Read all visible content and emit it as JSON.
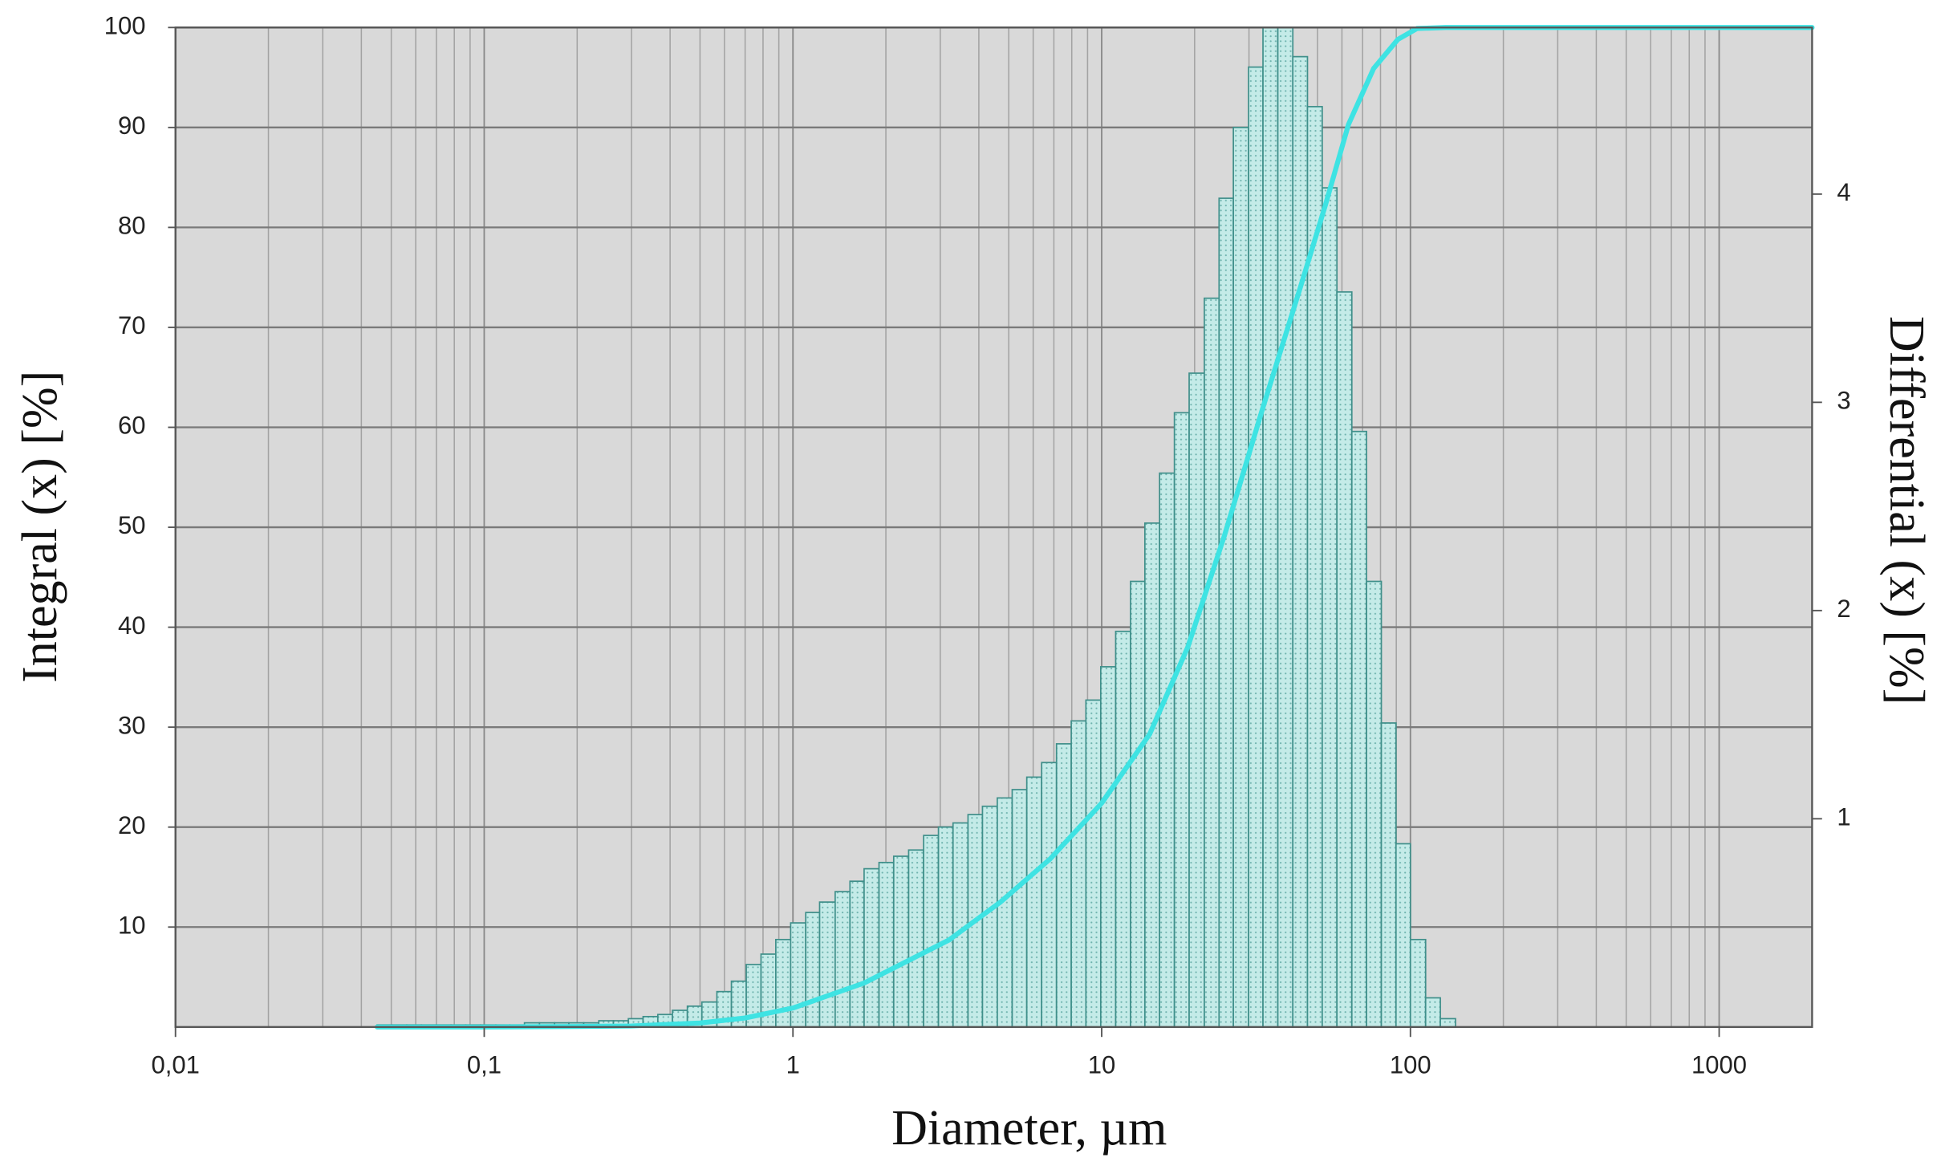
{
  "chart_data": {
    "type": "histogram",
    "xlabel": "Diameter, µm",
    "ylabel": "Integral (x) [%]",
    "y2label": "Differential (x) [%]",
    "xscale": "log",
    "xlim": [
      0.01,
      2000
    ],
    "xticks": [
      {
        "value": 0.01,
        "label": "0,01"
      },
      {
        "value": 0.1,
        "label": "0,1"
      },
      1,
      10,
      100,
      1000
    ],
    "x_minor_grid": [
      0.02,
      0.03,
      0.04,
      0.05,
      0.06,
      0.07,
      0.08,
      0.09,
      0.2,
      0.3,
      0.4,
      0.5,
      0.6,
      0.7,
      0.8,
      0.9,
      2,
      3,
      4,
      5,
      6,
      7,
      8,
      9,
      20,
      30,
      40,
      50,
      60,
      70,
      80,
      90,
      200,
      300,
      400,
      500,
      600,
      700,
      800,
      900
    ],
    "ylim": [
      0,
      100
    ],
    "yticks": [
      10,
      20,
      30,
      40,
      50,
      60,
      70,
      80,
      90,
      100
    ],
    "y2lim": [
      0,
      4.8
    ],
    "y2ticks": [
      1,
      2,
      3,
      4
    ],
    "grid": true,
    "background": "#d9d9d9",
    "series": [
      {
        "type": "histogram",
        "axis": "y2",
        "color": "#c4ebe8",
        "edge_color": "#3f8f8a",
        "bins": [
          0.045,
          0.0502,
          0.0561,
          0.0626,
          0.0699,
          0.0781,
          0.0871,
          0.0973,
          0.109,
          0.121,
          0.135,
          0.151,
          0.169,
          0.188,
          0.21,
          0.235,
          0.262,
          0.293,
          0.327,
          0.365,
          0.407,
          0.455,
          0.507,
          0.567,
          0.632,
          0.706,
          0.788,
          0.88,
          0.983,
          1.1,
          1.22,
          1.37,
          1.53,
          1.7,
          1.9,
          2.12,
          2.37,
          2.65,
          2.96,
          3.3,
          3.69,
          4.11,
          4.59,
          5.13,
          5.72,
          6.39,
          7.14,
          7.97,
          8.89,
          9.93,
          11.1,
          12.4,
          13.8,
          15.4,
          17.2,
          19.2,
          21.5,
          24,
          26.7,
          29.9,
          33.3,
          37.2,
          41.6,
          46.4,
          51.8,
          57.8,
          64.6,
          72.1,
          80.5,
          89.8,
          100,
          112,
          125,
          140
        ],
        "values": [
          0.01,
          0.01,
          0.01,
          0.01,
          0.01,
          0.01,
          0.01,
          0.01,
          0.01,
          0.01,
          0.02,
          0.02,
          0.02,
          0.02,
          0.02,
          0.03,
          0.03,
          0.04,
          0.05,
          0.06,
          0.08,
          0.1,
          0.12,
          0.17,
          0.22,
          0.3,
          0.35,
          0.42,
          0.5,
          0.55,
          0.6,
          0.65,
          0.7,
          0.76,
          0.79,
          0.82,
          0.85,
          0.92,
          0.96,
          0.98,
          1.02,
          1.06,
          1.1,
          1.14,
          1.2,
          1.27,
          1.36,
          1.47,
          1.57,
          1.73,
          1.9,
          2.14,
          2.42,
          2.66,
          2.95,
          3.14,
          3.5,
          3.98,
          4.32,
          4.61,
          4.8,
          4.8,
          4.66,
          4.42,
          4.03,
          3.53,
          2.86,
          2.14,
          1.46,
          0.88,
          0.42,
          0.14,
          0.04
        ]
      },
      {
        "type": "line",
        "axis": "y",
        "color": "#3ee3e3",
        "x": [
          0.045,
          0.1,
          0.2,
          0.3,
          0.5,
          0.7,
          1,
          1.7,
          3.2,
          4.7,
          6.8,
          10,
          14.3,
          19,
          25,
          33,
          44,
          53,
          63,
          76,
          91,
          105,
          130,
          2000
        ],
        "values": [
          0,
          0,
          0.05,
          0.1,
          0.4,
          0.9,
          1.9,
          4.4,
          8.7,
          12.5,
          16.8,
          22.4,
          29.3,
          38,
          49.2,
          61.6,
          74,
          82.2,
          90.3,
          95.9,
          98.8,
          99.9,
          100,
          100
        ]
      }
    ]
  }
}
